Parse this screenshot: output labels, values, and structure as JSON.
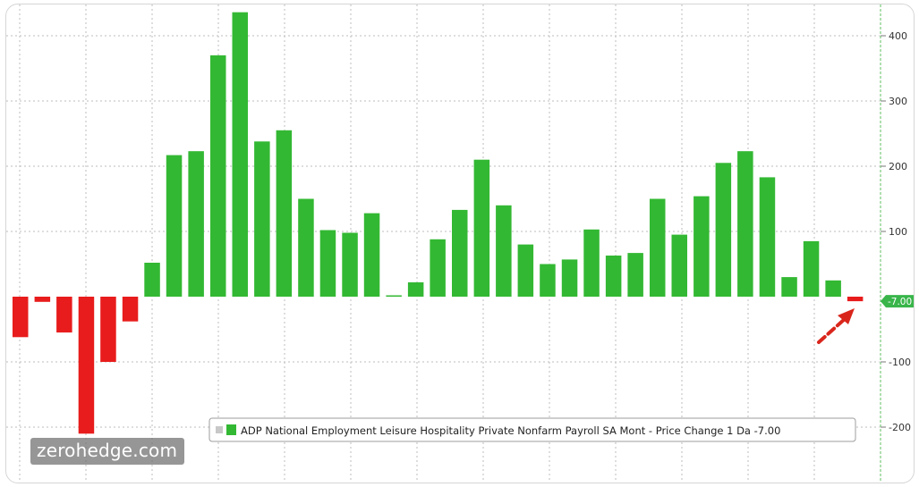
{
  "watermark": "zerohedge.com",
  "colors": {
    "positive": "#33b833",
    "negative": "#e81c1c",
    "grid": "#bdbdbd",
    "axis_line": "#5fbf5f",
    "last_value_badge": "#39b54a",
    "arrow": "#d9261c"
  },
  "chart_data": {
    "type": "bar",
    "values": [
      -62,
      -8,
      -55,
      -210,
      -100,
      -38,
      52,
      217,
      223,
      370,
      436,
      238,
      255,
      150,
      102,
      98,
      128,
      2,
      22,
      88,
      133,
      210,
      140,
      80,
      50,
      57,
      103,
      63,
      67,
      150,
      95,
      154,
      205,
      223,
      183,
      30,
      85,
      25,
      -7
    ],
    "ylim": [
      -250,
      440
    ],
    "yticks": [
      400,
      300,
      200,
      100,
      -100,
      -200
    ],
    "grid": true,
    "y_axis_position": "right",
    "legend": {
      "position": "bottom-right",
      "text": "ADP National Employment Leisure Hospitality Private Nonfarm Payroll SA Mont - Price Change 1 Da -7.00"
    },
    "last_value_label": "-7.00"
  }
}
